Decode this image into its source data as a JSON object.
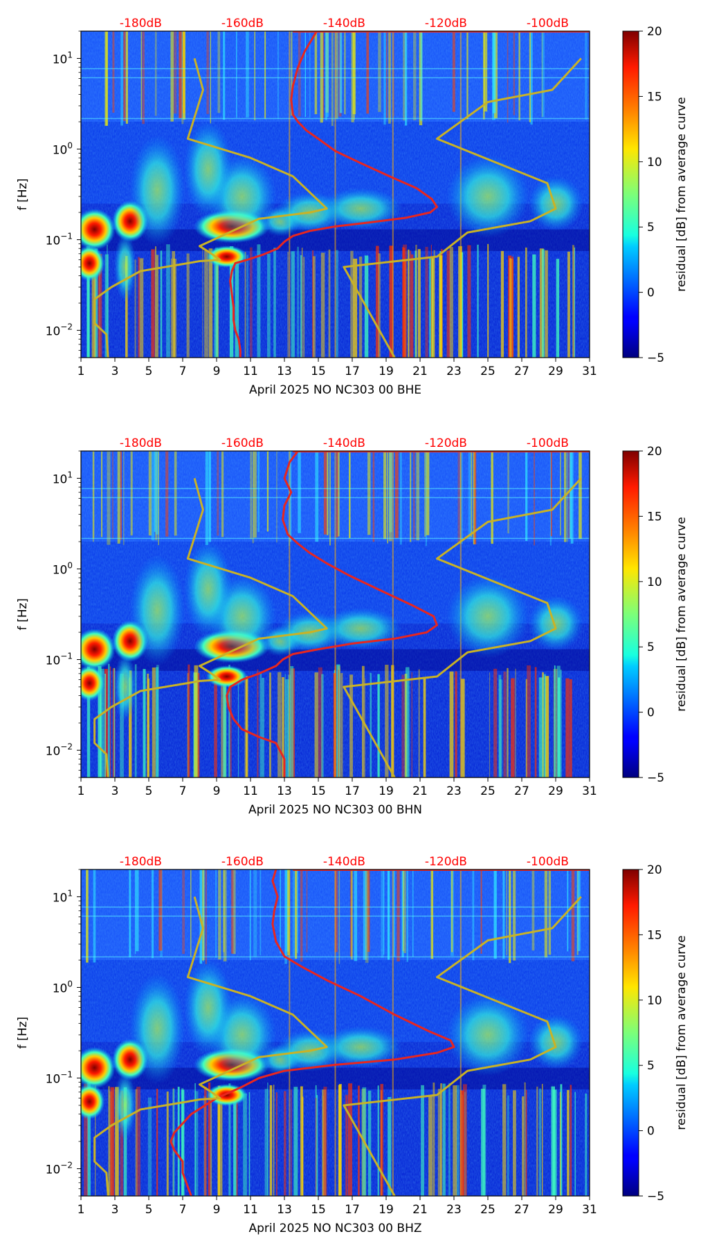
{
  "chart_data": [
    {
      "type": "heatmap",
      "title": "",
      "xlabel": "April 2025 NO NC303 00 BHE",
      "ylabel": "f [Hz]",
      "x_ticks": [
        "1",
        "3",
        "5",
        "7",
        "9",
        "11",
        "13",
        "15",
        "17",
        "19",
        "21",
        "23",
        "25",
        "27",
        "29",
        "31"
      ],
      "y_ticks": [
        {
          "label": "10",
          "exp": "1",
          "value": 10
        },
        {
          "label": "10",
          "exp": "0",
          "value": 1
        },
        {
          "label": "10",
          "exp": "−1",
          "value": 0.1
        },
        {
          "label": "10",
          "exp": "−2",
          "value": 0.01
        }
      ],
      "xlim": [
        1,
        31
      ],
      "ylim": [
        0.005,
        20
      ],
      "y_scale": "log",
      "top_axis_labels": [
        "-180dB",
        "-160dB",
        "-140dB",
        "-120dB",
        "-100dB"
      ],
      "top_axis_color": "#ff0000",
      "colorbar": {
        "label": "residual [dB] from average curve",
        "ticks": [
          "20",
          "15",
          "10",
          "5",
          "0",
          "−5"
        ],
        "min": -5,
        "max": 20,
        "colormap": "jet"
      },
      "series": [
        {
          "color": "#e8261f",
          "x": [
            14.9,
            14.6,
            14.2,
            13.8,
            13.5,
            13.4,
            13.5,
            13.8,
            14.3,
            15.0,
            16.0,
            17.5,
            19.2,
            20.8,
            21.7,
            22.0,
            21.6,
            20.2,
            18.0,
            16.0,
            14.5,
            13.5,
            13.0,
            12.6,
            11.7,
            10.8,
            10.1,
            9.9,
            9.8,
            9.9,
            10.0,
            10.0,
            10.1,
            10.3,
            10.4,
            10.4
          ],
          "y": [
            20,
            16,
            12,
            8,
            5,
            3.5,
            2.4,
            2.0,
            1.6,
            1.3,
            0.95,
            0.7,
            0.5,
            0.37,
            0.28,
            0.23,
            0.2,
            0.175,
            0.155,
            0.14,
            0.125,
            0.11,
            0.095,
            0.08,
            0.068,
            0.06,
            0.055,
            0.045,
            0.035,
            0.025,
            0.018,
            0.013,
            0.01,
            0.008,
            0.006,
            0.005
          ]
        },
        {
          "color": "#c9b226",
          "x": [
            7.7,
            8.2,
            7.3,
            11.0,
            13.5,
            15.5,
            14.5,
            11.5,
            8.0,
            8.6,
            9.2,
            8.0,
            7.3,
            4.5,
            2.8,
            1.8,
            1.8,
            2.5,
            2.6
          ],
          "y": [
            10,
            4.5,
            1.3,
            0.8,
            0.5,
            0.22,
            0.2,
            0.17,
            0.085,
            0.072,
            0.06,
            0.058,
            0.055,
            0.045,
            0.03,
            0.022,
            0.012,
            0.009,
            0.005
          ]
        },
        {
          "color": "#c9b226",
          "x": [
            30.5,
            28.8,
            25.0,
            22.0,
            28.5,
            29.0,
            27.5,
            23.8,
            22.0,
            16.5,
            19.5
          ],
          "y": [
            10,
            4.5,
            3.3,
            1.3,
            0.42,
            0.22,
            0.16,
            0.12,
            0.065,
            0.05,
            0.005
          ]
        }
      ]
    },
    {
      "type": "heatmap",
      "title": "",
      "xlabel": "April 2025 NO NC303 00 BHN",
      "ylabel": "f [Hz]",
      "x_ticks": [
        "1",
        "3",
        "5",
        "7",
        "9",
        "11",
        "13",
        "15",
        "17",
        "19",
        "21",
        "23",
        "25",
        "27",
        "29",
        "31"
      ],
      "y_ticks": [
        {
          "label": "10",
          "exp": "1",
          "value": 10
        },
        {
          "label": "10",
          "exp": "0",
          "value": 1
        },
        {
          "label": "10",
          "exp": "−1",
          "value": 0.1
        },
        {
          "label": "10",
          "exp": "−2",
          "value": 0.01
        }
      ],
      "xlim": [
        1,
        31
      ],
      "ylim": [
        0.005,
        20
      ],
      "y_scale": "log",
      "top_axis_labels": [
        "-180dB",
        "-160dB",
        "-140dB",
        "-120dB",
        "-100dB"
      ],
      "top_axis_color": "#ff0000",
      "colorbar": {
        "label": "residual [dB] from average curve",
        "ticks": [
          "20",
          "15",
          "10",
          "5",
          "0",
          "−5"
        ],
        "min": -5,
        "max": 20,
        "colormap": "jet"
      },
      "series": [
        {
          "color": "#e8261f",
          "x": [
            13.8,
            13.3,
            13.0,
            13.4,
            13.0,
            12.9,
            13.2,
            13.8,
            14.5,
            15.5,
            16.8,
            18.5,
            20.5,
            21.8,
            22.0,
            21.4,
            19.5,
            17.0,
            15.0,
            13.5,
            12.9,
            12.5,
            11.5,
            10.5,
            9.8,
            9.6,
            9.7,
            10.0,
            10.5,
            11.5,
            12.5,
            13.0,
            13.0
          ],
          "y": [
            20,
            15,
            10,
            7,
            5,
            3.5,
            2.4,
            1.9,
            1.5,
            1.15,
            0.85,
            0.6,
            0.4,
            0.3,
            0.24,
            0.2,
            0.17,
            0.15,
            0.13,
            0.115,
            0.1,
            0.085,
            0.07,
            0.06,
            0.05,
            0.04,
            0.03,
            0.022,
            0.017,
            0.014,
            0.012,
            0.008,
            0.005
          ]
        },
        {
          "color": "#c9b226",
          "x": [
            7.7,
            8.2,
            7.3,
            11.0,
            13.5,
            15.5,
            14.5,
            11.5,
            8.0,
            8.6,
            9.2,
            8.0,
            7.3,
            4.5,
            2.8,
            1.8,
            1.8,
            2.5,
            2.6
          ],
          "y": [
            10,
            4.5,
            1.3,
            0.8,
            0.5,
            0.22,
            0.2,
            0.17,
            0.085,
            0.072,
            0.06,
            0.058,
            0.055,
            0.045,
            0.03,
            0.022,
            0.012,
            0.009,
            0.005
          ]
        },
        {
          "color": "#c9b226",
          "x": [
            30.5,
            28.8,
            25.0,
            22.0,
            28.5,
            29.0,
            27.5,
            23.8,
            22.0,
            16.5,
            19.5
          ],
          "y": [
            10,
            4.5,
            3.3,
            1.3,
            0.42,
            0.22,
            0.16,
            0.12,
            0.065,
            0.05,
            0.005
          ]
        }
      ]
    },
    {
      "type": "heatmap",
      "title": "",
      "xlabel": "April 2025 NO NC303 00 BHZ",
      "ylabel": "f [Hz]",
      "x_ticks": [
        "1",
        "3",
        "5",
        "7",
        "9",
        "11",
        "13",
        "15",
        "17",
        "19",
        "21",
        "23",
        "25",
        "27",
        "29",
        "31"
      ],
      "y_ticks": [
        {
          "label": "10",
          "exp": "1",
          "value": 10
        },
        {
          "label": "10",
          "exp": "0",
          "value": 1
        },
        {
          "label": "10",
          "exp": "−1",
          "value": 0.1
        },
        {
          "label": "10",
          "exp": "−2",
          "value": 0.01
        }
      ],
      "xlim": [
        1,
        31
      ],
      "ylim": [
        0.005,
        20
      ],
      "y_scale": "log",
      "top_axis_labels": [
        "-180dB",
        "-160dB",
        "-140dB",
        "-120dB",
        "-100dB"
      ],
      "top_axis_color": "#ff0000",
      "colorbar": {
        "label": "residual [dB] from average curve",
        "ticks": [
          "20",
          "15",
          "10",
          "5",
          "0",
          "−5"
        ],
        "min": -5,
        "max": 20,
        "colormap": "jet"
      },
      "series": [
        {
          "color": "#e8261f",
          "x": [
            12.5,
            12.3,
            12.6,
            12.4,
            12.3,
            12.5,
            13.0,
            14.0,
            15.5,
            17.5,
            19.5,
            21.5,
            22.8,
            23.0,
            22.0,
            19.5,
            16.0,
            13.0,
            11.5,
            10.5,
            9.0,
            7.5,
            6.5,
            6.3,
            6.5,
            7.0,
            7.0,
            7.5
          ],
          "y": [
            20,
            15,
            10,
            7,
            5,
            3.2,
            2.2,
            1.7,
            1.2,
            0.8,
            0.5,
            0.33,
            0.26,
            0.22,
            0.19,
            0.16,
            0.14,
            0.12,
            0.1,
            0.08,
            0.06,
            0.04,
            0.025,
            0.02,
            0.016,
            0.012,
            0.009,
            0.005
          ]
        },
        {
          "color": "#c9b226",
          "x": [
            7.7,
            8.2,
            7.3,
            11.0,
            13.5,
            15.5,
            14.5,
            11.5,
            8.0,
            8.6,
            9.2,
            8.0,
            7.3,
            4.5,
            2.8,
            1.8,
            1.8,
            2.5,
            2.6
          ],
          "y": [
            10,
            4.5,
            1.3,
            0.8,
            0.5,
            0.22,
            0.2,
            0.17,
            0.085,
            0.072,
            0.06,
            0.058,
            0.055,
            0.045,
            0.03,
            0.022,
            0.012,
            0.009,
            0.005
          ]
        },
        {
          "color": "#c9b226",
          "x": [
            30.5,
            28.8,
            25.0,
            22.0,
            28.5,
            29.0,
            27.5,
            23.8,
            22.0,
            16.5,
            19.5
          ],
          "y": [
            10,
            4.5,
            3.3,
            1.3,
            0.42,
            0.22,
            0.16,
            0.12,
            0.065,
            0.05,
            0.005
          ]
        }
      ]
    }
  ]
}
